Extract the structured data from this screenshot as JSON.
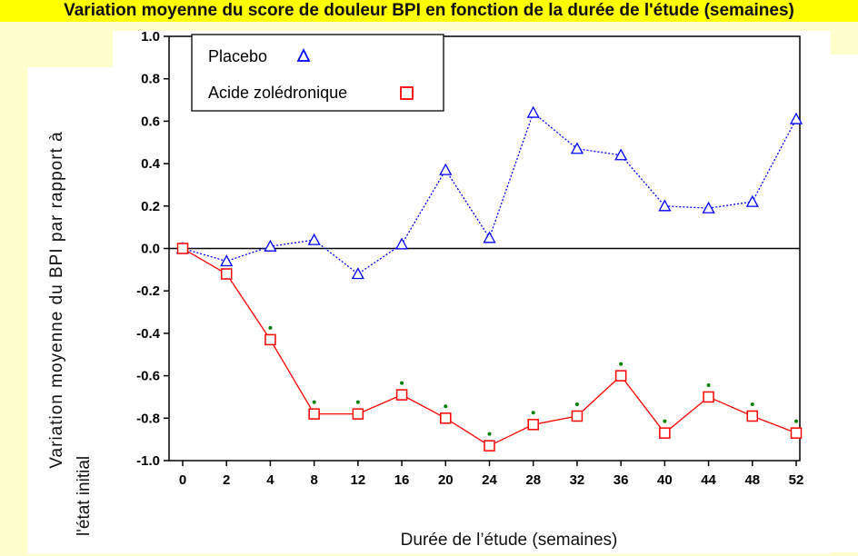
{
  "header": {
    "partial_text": "Variation moyenne du score de douleur BPI en fonction de la durée de l'étude (semaines)"
  },
  "chart_data": {
    "type": "line",
    "title": "",
    "xlabel": "Durée de l’étude (semaines)",
    "ylabel_line1": "Variation moyenne du BPI par rapport à",
    "ylabel_line2": "l'état initial",
    "ylim": [
      -1.0,
      1.0
    ],
    "y_ticks": [
      "1.0",
      "0.8",
      "0.6",
      "0.4",
      "0.2",
      "0.0",
      "-0.2",
      "-0.4",
      "-0.6",
      "-0.8",
      "-1.0"
    ],
    "categories": [
      "0",
      "2",
      "4",
      "8",
      "12",
      "16",
      "20",
      "24",
      "28",
      "32",
      "36",
      "40",
      "44",
      "48",
      "52"
    ],
    "series": [
      {
        "name": "Placebo",
        "marker": "triangle",
        "line_style": "dotted",
        "color": "#0000ff",
        "values": [
          0.0,
          -0.06,
          0.01,
          0.04,
          -0.12,
          0.02,
          0.37,
          0.05,
          0.64,
          0.47,
          0.44,
          0.2,
          0.19,
          0.22,
          0.61
        ]
      },
      {
        "name": "Acide zolédronique",
        "marker": "square",
        "line_style": "solid",
        "color": "#ff0000",
        "values": [
          0.0,
          -0.12,
          -0.43,
          -0.78,
          -0.78,
          -0.69,
          -0.8,
          -0.93,
          -0.83,
          -0.79,
          -0.6,
          -0.87,
          -0.7,
          -0.79,
          -0.87
        ]
      }
    ],
    "significance_color": "#008000",
    "legend": {
      "placement": "top-left",
      "entries": [
        "Placebo",
        "Acide zolédronique"
      ]
    },
    "reference_line_y": 0.0,
    "grid": false
  }
}
